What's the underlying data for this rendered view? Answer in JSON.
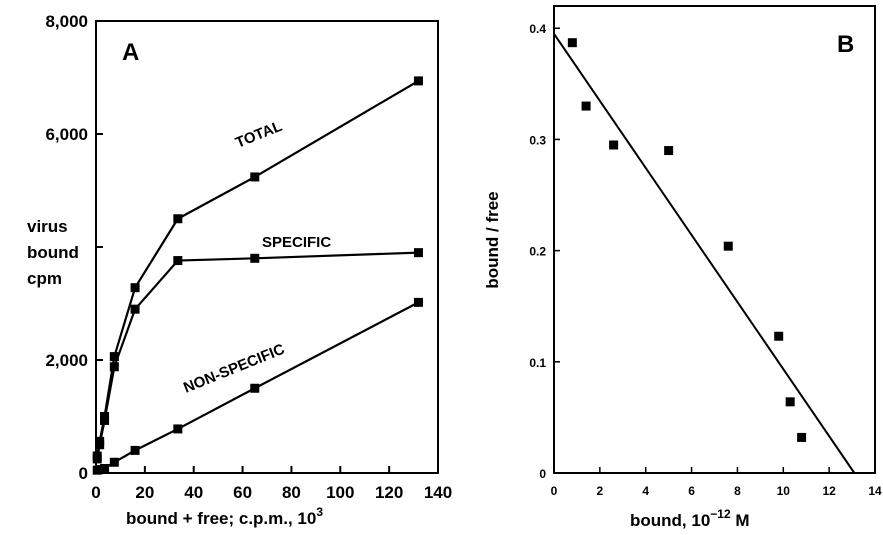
{
  "chart_data": [
    {
      "type": "line",
      "panel_label": "A",
      "xlabel_main": "bound + free;  c.p.m.,  10",
      "xlabel_sup": "3",
      "ylabel": [
        "virus",
        "bound",
        "cpm"
      ],
      "xlim": [
        0,
        140
      ],
      "ylim": [
        0,
        8000
      ],
      "xticks": [
        0,
        20,
        40,
        60,
        80,
        100,
        120,
        140
      ],
      "xtick_labels": [
        "0",
        "20",
        "40",
        "60",
        "80",
        "100",
        "120",
        "140"
      ],
      "yticks": [
        0,
        2000,
        4000,
        6000,
        8000
      ],
      "ytick_labels": [
        "0",
        "2,000",
        "",
        "6,000",
        "8,000"
      ],
      "series": [
        {
          "name": "TOTAL",
          "points": [
            [
              0.5,
              300
            ],
            [
              1.5,
              560
            ],
            [
              3.5,
              1000
            ],
            [
              7.5,
              2060
            ],
            [
              16,
              3280
            ],
            [
              33.5,
              4500
            ],
            [
              65,
              5240
            ],
            [
              132,
              6940
            ]
          ]
        },
        {
          "name": "SPECIFIC",
          "points": [
            [
              0.5,
              250
            ],
            [
              1.5,
              500
            ],
            [
              3.5,
              930
            ],
            [
              7.5,
              1880
            ],
            [
              16,
              2900
            ],
            [
              33.5,
              3760
            ],
            [
              65,
              3800
            ],
            [
              132,
              3900
            ]
          ]
        },
        {
          "name": "NON-SPECIFIC",
          "points": [
            [
              0.5,
              50
            ],
            [
              1.5,
              60
            ],
            [
              3.5,
              80
            ],
            [
              7.5,
              190
            ],
            [
              16,
              400
            ],
            [
              33.5,
              780
            ],
            [
              65,
              1500
            ],
            [
              132,
              3020
            ]
          ]
        }
      ]
    },
    {
      "type": "scatter",
      "panel_label": "B",
      "xlabel_main": "bound,   10",
      "xlabel_sup": "−12",
      "xlabel_unit": " M",
      "ylabel": "bound / free",
      "xlim": [
        0,
        14
      ],
      "ylim": [
        0,
        0.42
      ],
      "xticks": [
        0,
        2,
        4,
        6,
        8,
        10,
        12,
        14
      ],
      "xtick_labels": [
        "0",
        "2",
        "4",
        "6",
        "8",
        "10",
        "12",
        "14"
      ],
      "yticks": [
        0,
        0.1,
        0.2,
        0.3,
        0.4
      ],
      "ytick_labels": [
        "0",
        "0.1",
        "0.2",
        "0.3",
        "0.4"
      ],
      "points": [
        [
          0.8,
          0.387
        ],
        [
          1.4,
          0.33
        ],
        [
          2.6,
          0.295
        ],
        [
          5.0,
          0.29
        ],
        [
          7.6,
          0.204
        ],
        [
          9.8,
          0.123
        ],
        [
          10.3,
          0.064
        ],
        [
          10.8,
          0.032
        ]
      ],
      "fit_line": [
        [
          0,
          0.395
        ],
        [
          13.1,
          0
        ]
      ]
    }
  ]
}
